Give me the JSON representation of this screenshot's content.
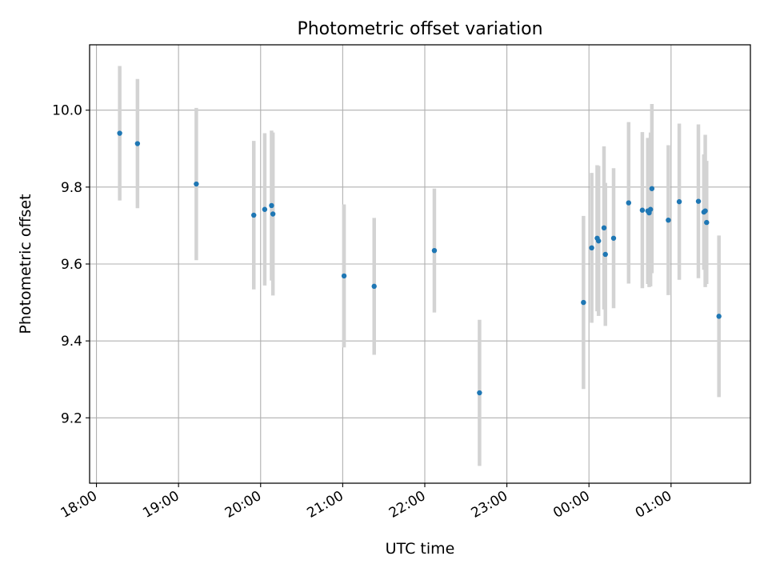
{
  "chart_data": {
    "type": "scatter",
    "title": "Photometric offset variation",
    "xlabel": "UTC time",
    "ylabel": "Photometric offset",
    "x_ticks": [
      "18:00",
      "19:00",
      "20:00",
      "21:00",
      "22:00",
      "23:00",
      "00:00",
      "01:00"
    ],
    "y_ticks": [
      "9.2",
      "9.4",
      "9.6",
      "9.8",
      "10.0"
    ],
    "x_range": [
      "17:55",
      "01:58"
    ],
    "ylim": [
      9.03,
      10.17
    ],
    "grid": true,
    "colors": {
      "point": "#1f77b4",
      "errorbar": "#d3d3d3",
      "grid": "#b0b0b0"
    },
    "points": [
      {
        "x": "18:17",
        "y": 9.94,
        "yerr": 0.175
      },
      {
        "x": "18:30",
        "y": 9.913,
        "yerr": 0.168
      },
      {
        "x": "19:13",
        "y": 9.808,
        "yerr": 0.198
      },
      {
        "x": "19:55",
        "y": 9.727,
        "yerr": 0.193
      },
      {
        "x": "20:03",
        "y": 9.742,
        "yerr": 0.198
      },
      {
        "x": "20:08",
        "y": 9.752,
        "yerr": 0.195
      },
      {
        "x": "20:09",
        "y": 9.73,
        "yerr": 0.212
      },
      {
        "x": "21:01",
        "y": 9.569,
        "yerr": 0.186
      },
      {
        "x": "21:23",
        "y": 9.542,
        "yerr": 0.178
      },
      {
        "x": "22:07",
        "y": 9.635,
        "yerr": 0.161
      },
      {
        "x": "22:40",
        "y": 9.265,
        "yerr": 0.19
      },
      {
        "x": "23:56",
        "y": 9.5,
        "yerr": 0.225
      },
      {
        "x": "00:02",
        "y": 9.642,
        "yerr": 0.195
      },
      {
        "x": "00:06",
        "y": 9.667,
        "yerr": 0.19
      },
      {
        "x": "00:07",
        "y": 9.66,
        "yerr": 0.195
      },
      {
        "x": "00:11",
        "y": 9.694,
        "yerr": 0.212
      },
      {
        "x": "00:12",
        "y": 9.625,
        "yerr": 0.186
      },
      {
        "x": "00:18",
        "y": 9.667,
        "yerr": 0.182
      },
      {
        "x": "00:29",
        "y": 9.759,
        "yerr": 0.21
      },
      {
        "x": "00:39",
        "y": 9.74,
        "yerr": 0.203
      },
      {
        "x": "00:43",
        "y": 9.738,
        "yerr": 0.19
      },
      {
        "x": "00:44",
        "y": 9.733,
        "yerr": 0.193
      },
      {
        "x": "00:45",
        "y": 9.742,
        "yerr": 0.2
      },
      {
        "x": "00:46",
        "y": 9.796,
        "yerr": 0.22
      },
      {
        "x": "00:58",
        "y": 9.714,
        "yerr": 0.195
      },
      {
        "x": "01:06",
        "y": 9.762,
        "yerr": 0.203
      },
      {
        "x": "01:20",
        "y": 9.763,
        "yerr": 0.2
      },
      {
        "x": "01:24",
        "y": 9.735,
        "yerr": 0.15
      },
      {
        "x": "01:25",
        "y": 9.738,
        "yerr": 0.198
      },
      {
        "x": "01:26",
        "y": 9.708,
        "yerr": 0.16
      },
      {
        "x": "01:35",
        "y": 9.464,
        "yerr": 0.21
      }
    ]
  }
}
